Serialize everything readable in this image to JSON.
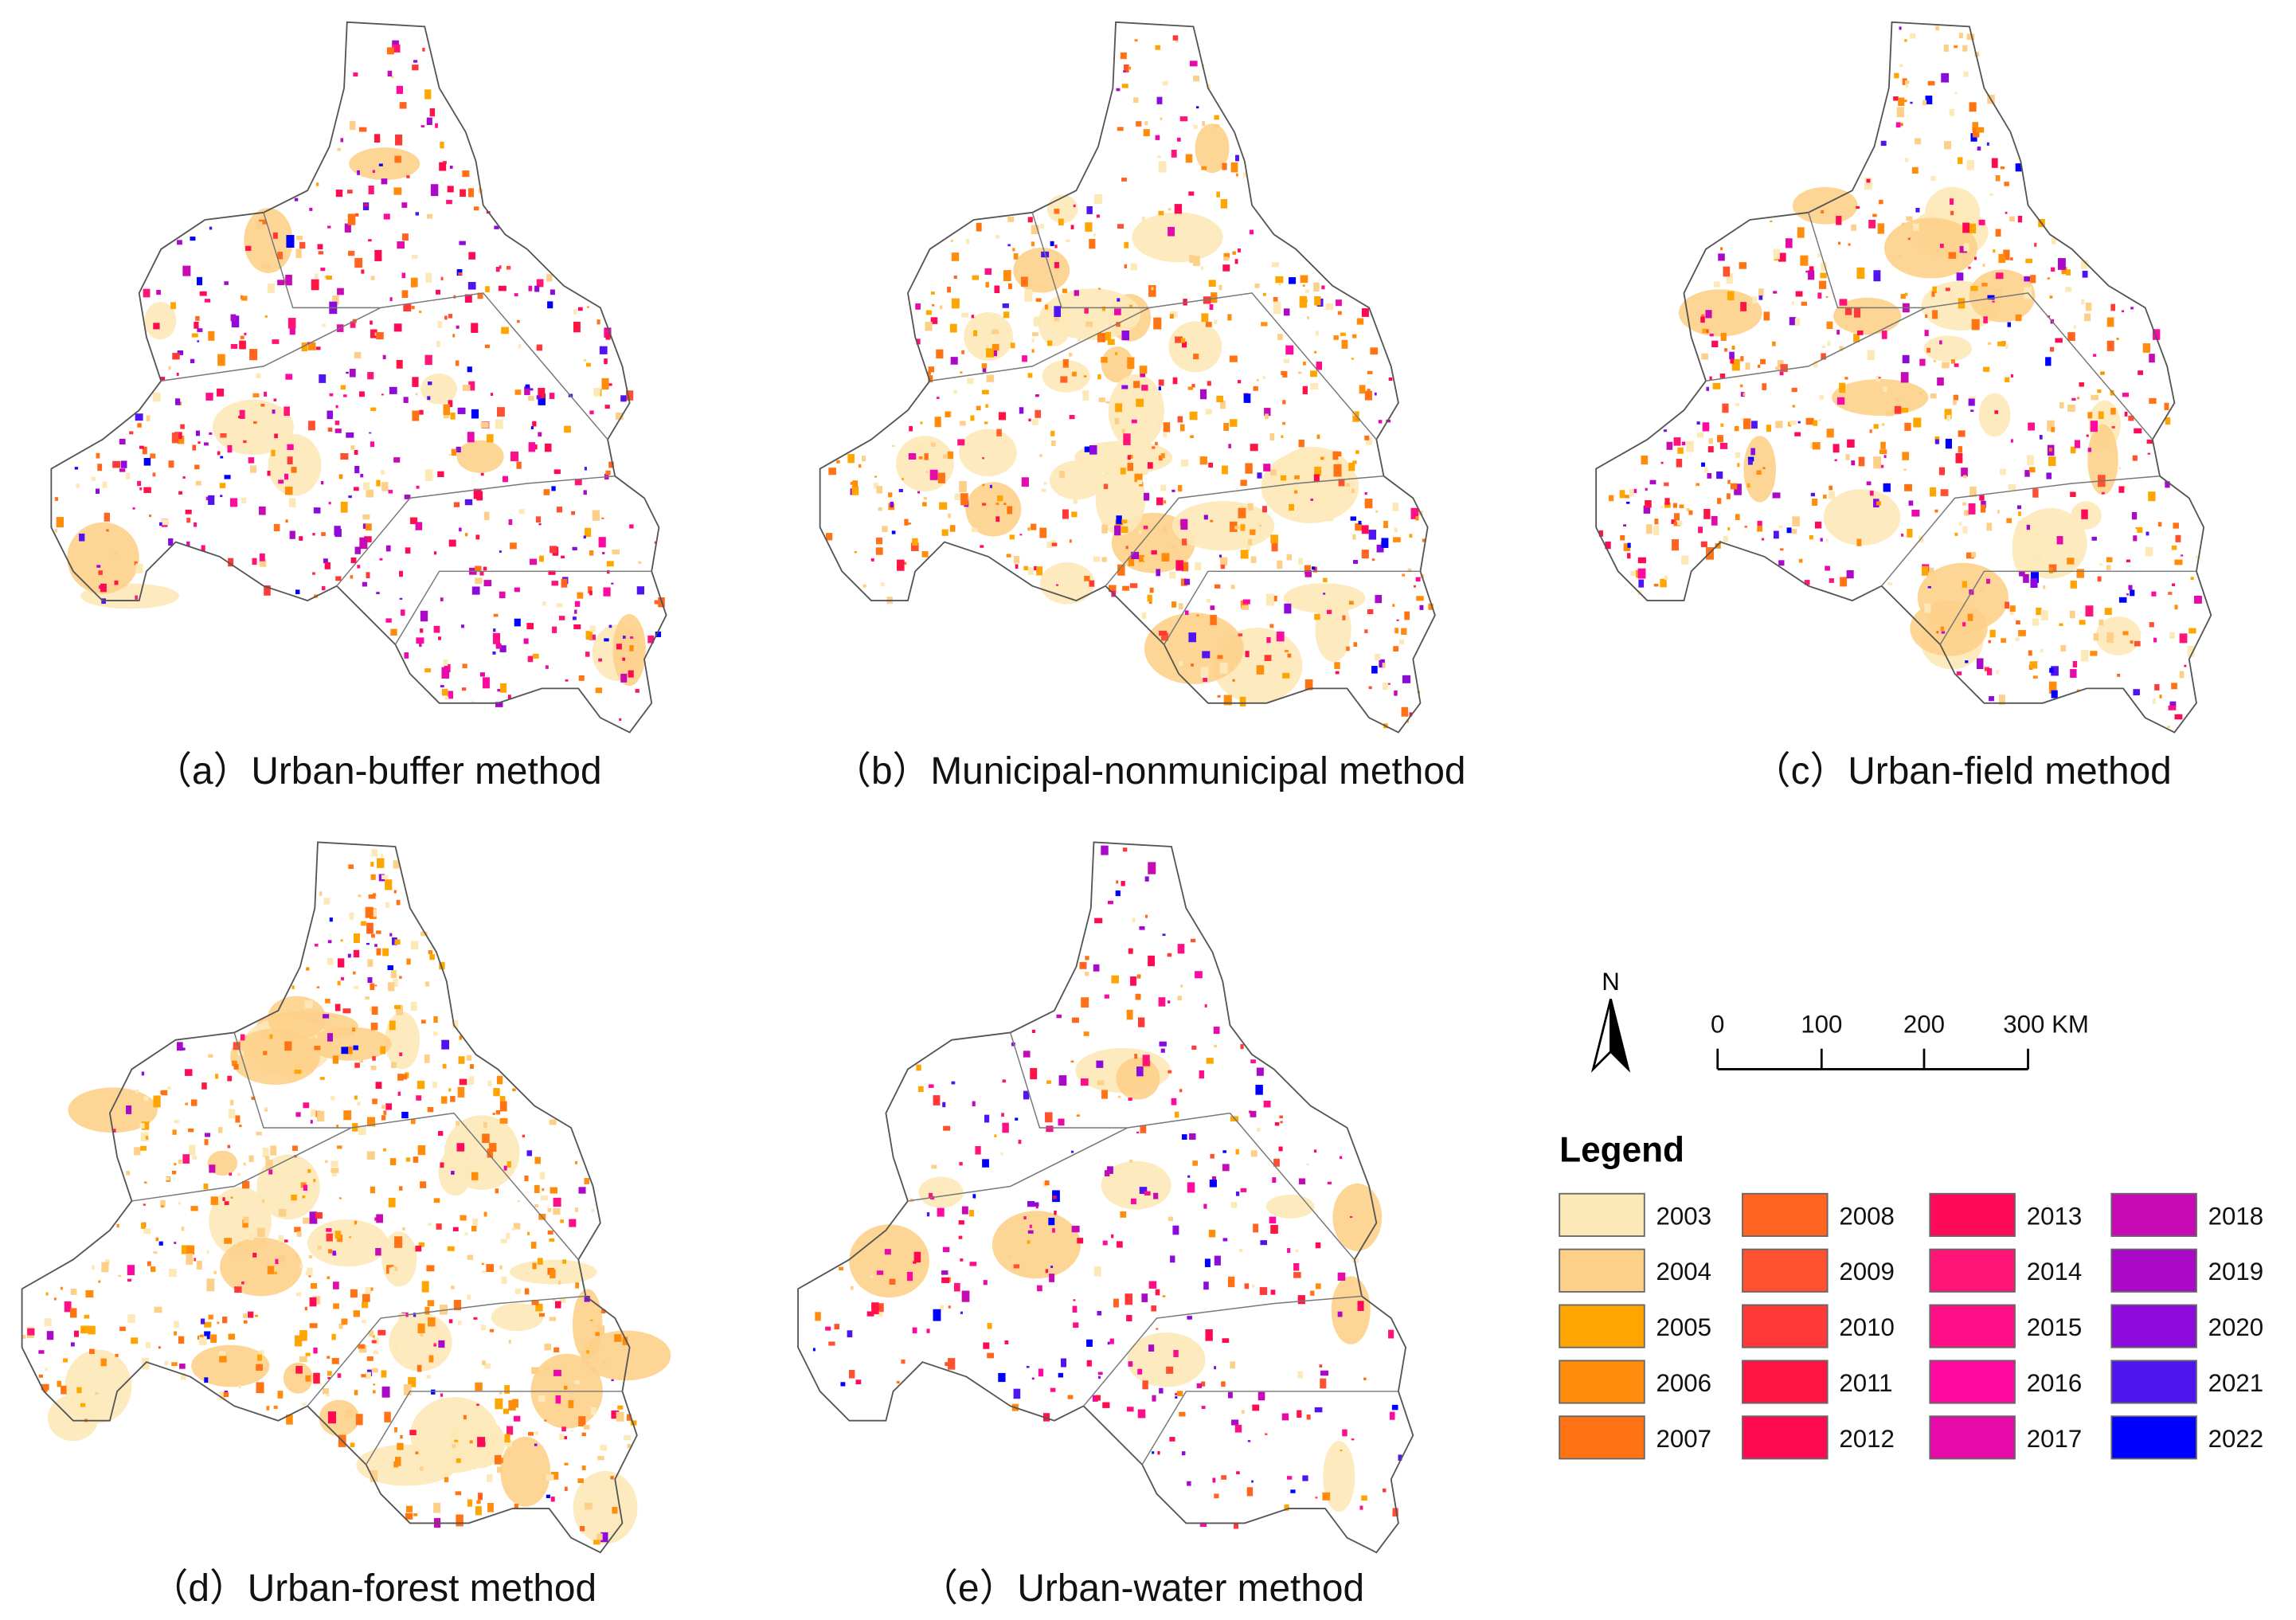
{
  "panels": [
    {
      "caption": "（a）Urban-buffer method"
    },
    {
      "caption": "（b）Municipal-nonmunicipal method"
    },
    {
      "caption": "（c）Urban-field method"
    },
    {
      "caption": "（d）Urban-forest method"
    },
    {
      "caption": "（e）Urban-water method"
    }
  ],
  "north_arrow": {
    "label": "N"
  },
  "scale_bar": {
    "labels": [
      "0",
      "100",
      "200",
      "300 KM"
    ]
  },
  "legend": {
    "title": "Legend",
    "items": [
      {
        "label": "2003",
        "color": "#fde9b8"
      },
      {
        "label": "2004",
        "color": "#fdd08a"
      },
      {
        "label": "2005",
        "color": "#ffa500"
      },
      {
        "label": "2006",
        "color": "#ff8c0a"
      },
      {
        "label": "2007",
        "color": "#ff7314"
      },
      {
        "label": "2008",
        "color": "#ff6420"
      },
      {
        "label": "2009",
        "color": "#ff5030"
      },
      {
        "label": "2010",
        "color": "#ff3838"
      },
      {
        "label": "2011",
        "color": "#ff1444"
      },
      {
        "label": "2012",
        "color": "#ff0a50"
      },
      {
        "label": "2013",
        "color": "#ff0a5a"
      },
      {
        "label": "2014",
        "color": "#ff1478"
      },
      {
        "label": "2015",
        "color": "#ff0f87"
      },
      {
        "label": "2016",
        "color": "#ff0aa0"
      },
      {
        "label": "2017",
        "color": "#e60aaa"
      },
      {
        "label": "2018",
        "color": "#c80ab4"
      },
      {
        "label": "2019",
        "color": "#aa0ac8"
      },
      {
        "label": "2020",
        "color": "#8c0adc"
      },
      {
        "label": "2021",
        "color": "#5014f0"
      },
      {
        "label": "2022",
        "color": "#0000ff"
      }
    ]
  }
}
